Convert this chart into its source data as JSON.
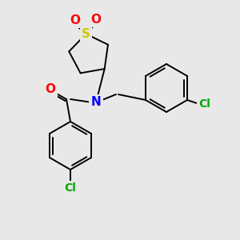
{
  "background_color": "#e8e8e8",
  "bond_color": "#000000",
  "atom_colors": {
    "O": "#ff0000",
    "N": "#0000ff",
    "S": "#cccc00",
    "Cl": "#00aa00",
    "C": "#000000"
  },
  "figsize": [
    3.0,
    3.0
  ],
  "dpi": 100,
  "lw": 1.4
}
